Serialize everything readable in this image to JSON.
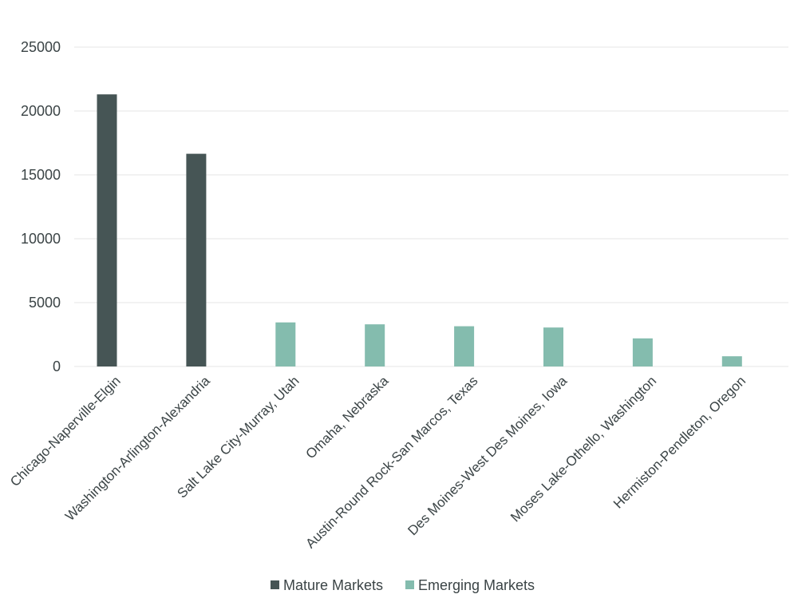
{
  "chart_data": {
    "type": "bar",
    "title": "",
    "xlabel": "",
    "ylabel": "",
    "ylim": [
      0,
      25000
    ],
    "yticks": [
      0,
      5000,
      10000,
      15000,
      20000,
      25000
    ],
    "grid": true,
    "legend_position": "bottom",
    "categories": [
      "Chicago-Naperville-Elgin",
      "Washington-Arlington-Alexandria",
      "Salt Lake City-Murray, Utah",
      "Omaha, Nebraska",
      "Austin-Round Rock-San Marcos, Texas",
      "Des Moines-West Des Moines, Iowa",
      "Moses Lake-Othello, Washington",
      "Hermiston-Pendleton, Oregon"
    ],
    "series": [
      {
        "name": "Mature Markets",
        "color": "#465555",
        "values": [
          21300,
          16650,
          null,
          null,
          null,
          null,
          null,
          null
        ]
      },
      {
        "name": "Emerging Markets",
        "color": "#84bcae",
        "values": [
          null,
          null,
          3450,
          3300,
          3150,
          3050,
          2200,
          800
        ]
      }
    ]
  }
}
